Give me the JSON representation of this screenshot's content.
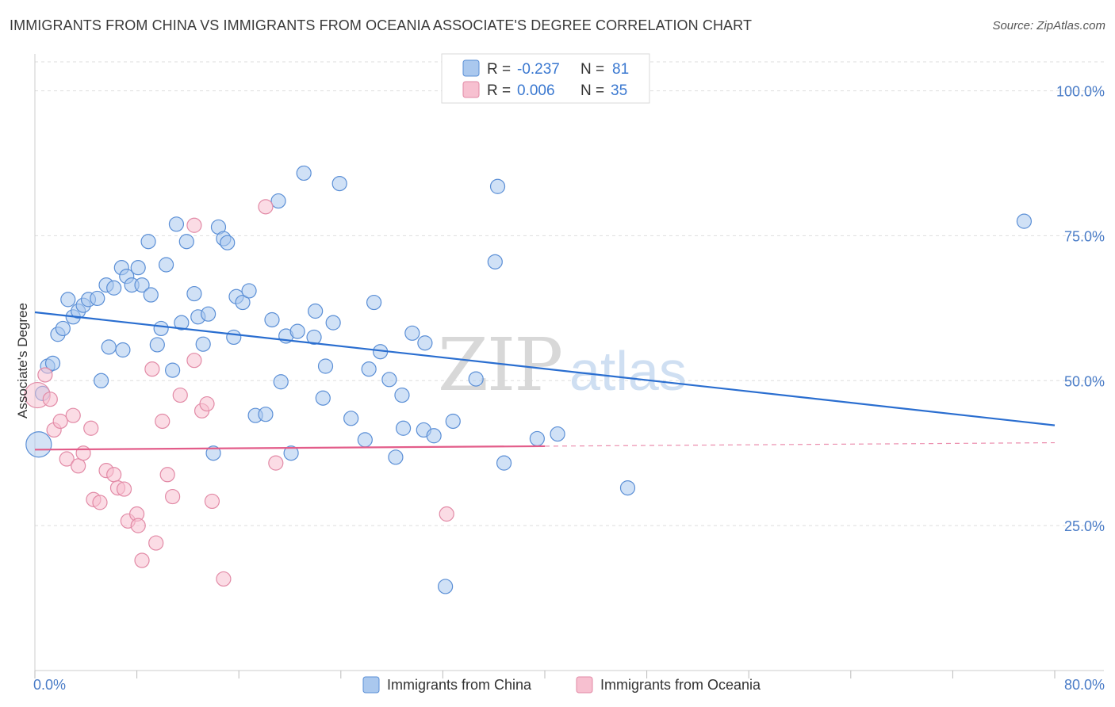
{
  "title": "IMMIGRANTS FROM CHINA VS IMMIGRANTS FROM OCEANIA ASSOCIATE'S DEGREE CORRELATION CHART",
  "source": "Source: ZipAtlas.com",
  "watermark": {
    "zip": "ZIP",
    "atlas": "atlas"
  },
  "colors": {
    "china_fill": "#aac8ee",
    "china_stroke": "#5b8fd6",
    "china_line": "#2a6ed0",
    "oceania_fill": "#f7c0d0",
    "oceania_stroke": "#e28aa6",
    "oceania_line": "#e35d8a",
    "tick_label": "#4a7cc7",
    "grid": "#dddddd"
  },
  "legend": {
    "rows": [
      {
        "r_label": "R =",
        "r_value": "-0.237",
        "n_label": "N =",
        "n_value": "81"
      },
      {
        "r_label": "R =",
        "r_value": "0.006",
        "n_label": "N =",
        "n_value": "35"
      }
    ]
  },
  "chart_data": {
    "type": "scatter",
    "xlabel": "",
    "ylabel": "Associate's Degree",
    "xlim": [
      0,
      80
    ],
    "ylim": [
      0,
      105
    ],
    "x_tick_labels": {
      "min": "0.0%",
      "max": "80.0%"
    },
    "y_ticks": [
      {
        "value": 25,
        "label": "25.0%"
      },
      {
        "value": 50,
        "label": "50.0%"
      },
      {
        "value": 75,
        "label": "75.0%"
      },
      {
        "value": 100,
        "label": "100.0%"
      }
    ],
    "grid": true,
    "legend_placement": "top-center",
    "series": [
      {
        "name": "Immigrants from China",
        "trend": {
          "x": [
            0,
            80
          ],
          "y": [
            61.8,
            42.3
          ],
          "dashed_from": null
        },
        "points": [
          [
            0.3,
            39.0
          ],
          [
            1.0,
            52.5
          ],
          [
            1.4,
            53.0
          ],
          [
            1.8,
            58.0
          ],
          [
            2.2,
            59.0
          ],
          [
            2.6,
            64.0
          ],
          [
            3.0,
            61.0
          ],
          [
            3.4,
            62.0
          ],
          [
            3.8,
            63.0
          ],
          [
            4.2,
            64.0
          ],
          [
            4.9,
            64.2
          ],
          [
            5.2,
            50.0
          ],
          [
            5.6,
            66.5
          ],
          [
            5.8,
            55.8
          ],
          [
            6.2,
            66.0
          ],
          [
            6.8,
            69.5
          ],
          [
            6.9,
            55.3
          ],
          [
            7.2,
            68.0
          ],
          [
            7.6,
            66.5
          ],
          [
            8.1,
            69.5
          ],
          [
            8.4,
            66.5
          ],
          [
            8.9,
            74.0
          ],
          [
            9.1,
            64.8
          ],
          [
            9.6,
            56.2
          ],
          [
            9.9,
            59.0
          ],
          [
            10.3,
            70.0
          ],
          [
            10.8,
            51.8
          ],
          [
            11.1,
            77.0
          ],
          [
            11.5,
            60.0
          ],
          [
            11.9,
            74.0
          ],
          [
            12.5,
            65.0
          ],
          [
            12.8,
            61.0
          ],
          [
            13.2,
            56.3
          ],
          [
            13.6,
            61.5
          ],
          [
            14.0,
            37.5
          ],
          [
            14.4,
            76.5
          ],
          [
            14.8,
            74.5
          ],
          [
            15.1,
            73.8
          ],
          [
            15.6,
            57.5
          ],
          [
            15.8,
            64.5
          ],
          [
            16.3,
            63.5
          ],
          [
            16.8,
            65.5
          ],
          [
            17.3,
            44.0
          ],
          [
            18.1,
            44.2
          ],
          [
            18.6,
            60.5
          ],
          [
            19.1,
            81.0
          ],
          [
            19.3,
            49.8
          ],
          [
            19.7,
            57.7
          ],
          [
            20.1,
            37.5
          ],
          [
            20.6,
            58.5
          ],
          [
            21.1,
            85.8
          ],
          [
            21.9,
            57.5
          ],
          [
            22.0,
            62.0
          ],
          [
            22.6,
            47.0
          ],
          [
            22.8,
            52.5
          ],
          [
            23.4,
            60.0
          ],
          [
            23.9,
            84.0
          ],
          [
            24.8,
            43.5
          ],
          [
            25.9,
            39.8
          ],
          [
            26.2,
            52.0
          ],
          [
            26.6,
            63.5
          ],
          [
            27.1,
            55.0
          ],
          [
            27.8,
            50.2
          ],
          [
            28.3,
            36.8
          ],
          [
            28.8,
            47.5
          ],
          [
            28.9,
            41.8
          ],
          [
            29.6,
            58.2
          ],
          [
            30.5,
            41.5
          ],
          [
            30.6,
            56.5
          ],
          [
            31.3,
            40.5
          ],
          [
            32.2,
            14.5
          ],
          [
            32.8,
            43.0
          ],
          [
            34.6,
            50.3
          ],
          [
            36.1,
            70.5
          ],
          [
            36.3,
            83.5
          ],
          [
            36.8,
            35.8
          ],
          [
            39.4,
            40.0
          ],
          [
            41.0,
            40.8
          ],
          [
            46.5,
            31.5
          ],
          [
            77.6,
            77.5
          ],
          [
            0.6,
            47.8
          ]
        ]
      },
      {
        "name": "Immigrants from Oceania",
        "trend": {
          "x": [
            0,
            40
          ],
          "y": [
            38.1,
            38.7
          ],
          "dashed_from": 40,
          "dashed_to": [
            80,
            39.3
          ]
        },
        "points": [
          [
            0.2,
            47.5
          ],
          [
            0.8,
            51.0
          ],
          [
            1.2,
            46.8
          ],
          [
            1.5,
            41.5
          ],
          [
            2.0,
            43.0
          ],
          [
            2.5,
            36.5
          ],
          [
            3.0,
            44.0
          ],
          [
            3.4,
            35.3
          ],
          [
            3.8,
            37.5
          ],
          [
            4.4,
            41.8
          ],
          [
            4.6,
            29.5
          ],
          [
            5.1,
            29.0
          ],
          [
            5.6,
            34.5
          ],
          [
            6.2,
            33.8
          ],
          [
            6.5,
            31.5
          ],
          [
            7.0,
            31.3
          ],
          [
            7.3,
            25.8
          ],
          [
            8.0,
            27.0
          ],
          [
            8.1,
            25.0
          ],
          [
            8.4,
            19.0
          ],
          [
            9.2,
            52.0
          ],
          [
            9.5,
            22.0
          ],
          [
            10.0,
            43.0
          ],
          [
            10.4,
            33.8
          ],
          [
            10.8,
            30.0
          ],
          [
            11.4,
            47.5
          ],
          [
            12.5,
            53.5
          ],
          [
            12.5,
            76.8
          ],
          [
            13.1,
            44.8
          ],
          [
            13.5,
            46.0
          ],
          [
            13.9,
            29.2
          ],
          [
            14.8,
            15.8
          ],
          [
            18.1,
            80.0
          ],
          [
            18.9,
            35.8
          ],
          [
            32.3,
            27.0
          ]
        ]
      }
    ]
  }
}
